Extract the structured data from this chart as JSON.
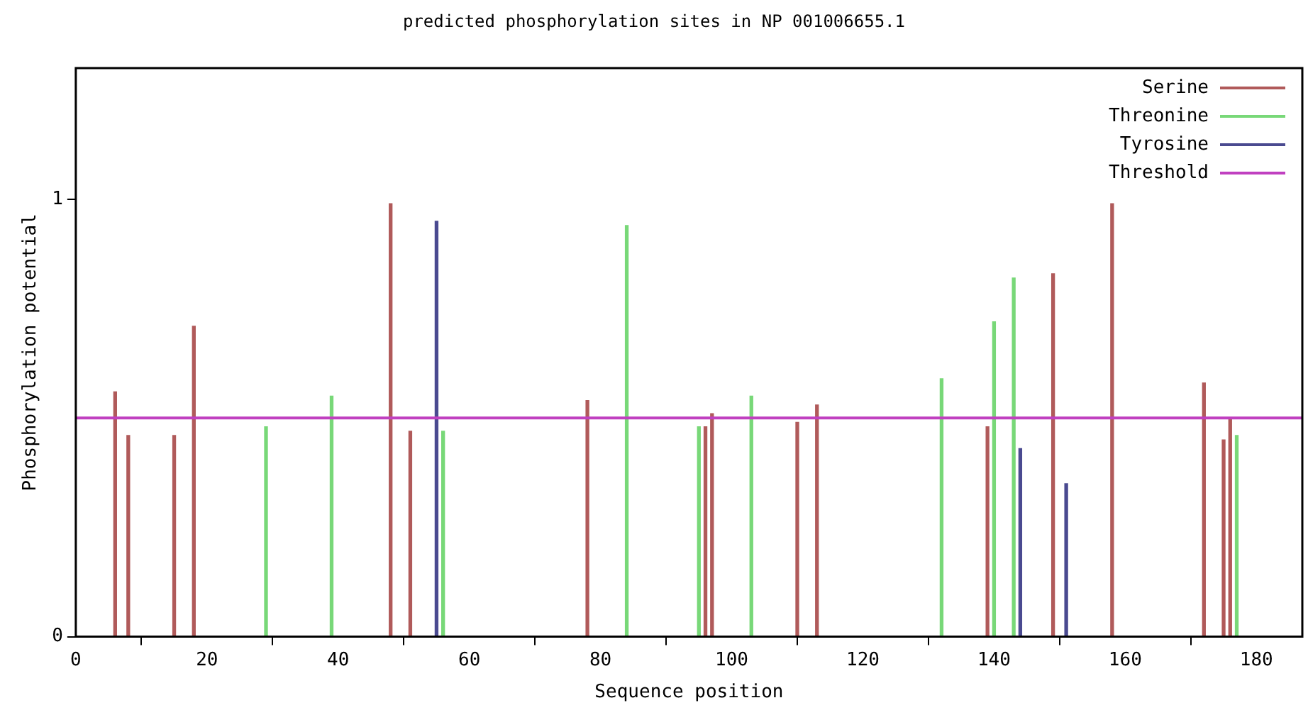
{
  "chart_data": {
    "type": "bar",
    "title": "predicted phosphorylation sites in NP 001006655.1",
    "xlabel": "Sequence position",
    "ylabel": "Phosphorylation potential",
    "xlim": [
      0,
      187
    ],
    "xticks": [
      0,
      20,
      40,
      60,
      80,
      100,
      120,
      140,
      160,
      180
    ],
    "ylim": [
      0,
      1.3
    ],
    "yticks": [
      0,
      1
    ],
    "series": [
      {
        "name": "Serine",
        "color": "#b05a5a",
        "x": [
          6,
          8,
          15,
          18,
          48,
          51,
          78,
          96,
          97,
          110,
          113,
          139,
          149,
          158,
          172,
          175,
          176
        ],
        "values": [
          0.56,
          0.46,
          0.46,
          0.71,
          0.99,
          0.47,
          0.54,
          0.48,
          0.51,
          0.49,
          0.53,
          0.48,
          0.83,
          0.99,
          0.58,
          0.45,
          0.5
        ]
      },
      {
        "name": "Threonine",
        "color": "#78d878",
        "x": [
          29,
          39,
          56,
          84,
          95,
          103,
          132,
          140,
          143,
          177
        ],
        "values": [
          0.48,
          0.55,
          0.47,
          0.94,
          0.48,
          0.55,
          0.59,
          0.72,
          0.82,
          0.46
        ]
      },
      {
        "name": "Tyrosine",
        "color": "#4a4a90",
        "x": [
          55,
          144,
          151
        ],
        "values": [
          0.95,
          0.43,
          0.35
        ]
      }
    ],
    "ref_lines": [
      {
        "axis": "y",
        "value": 0.5,
        "label": "Threshold",
        "color": "#c040c0"
      }
    ],
    "legend": "top right",
    "grid": false
  }
}
